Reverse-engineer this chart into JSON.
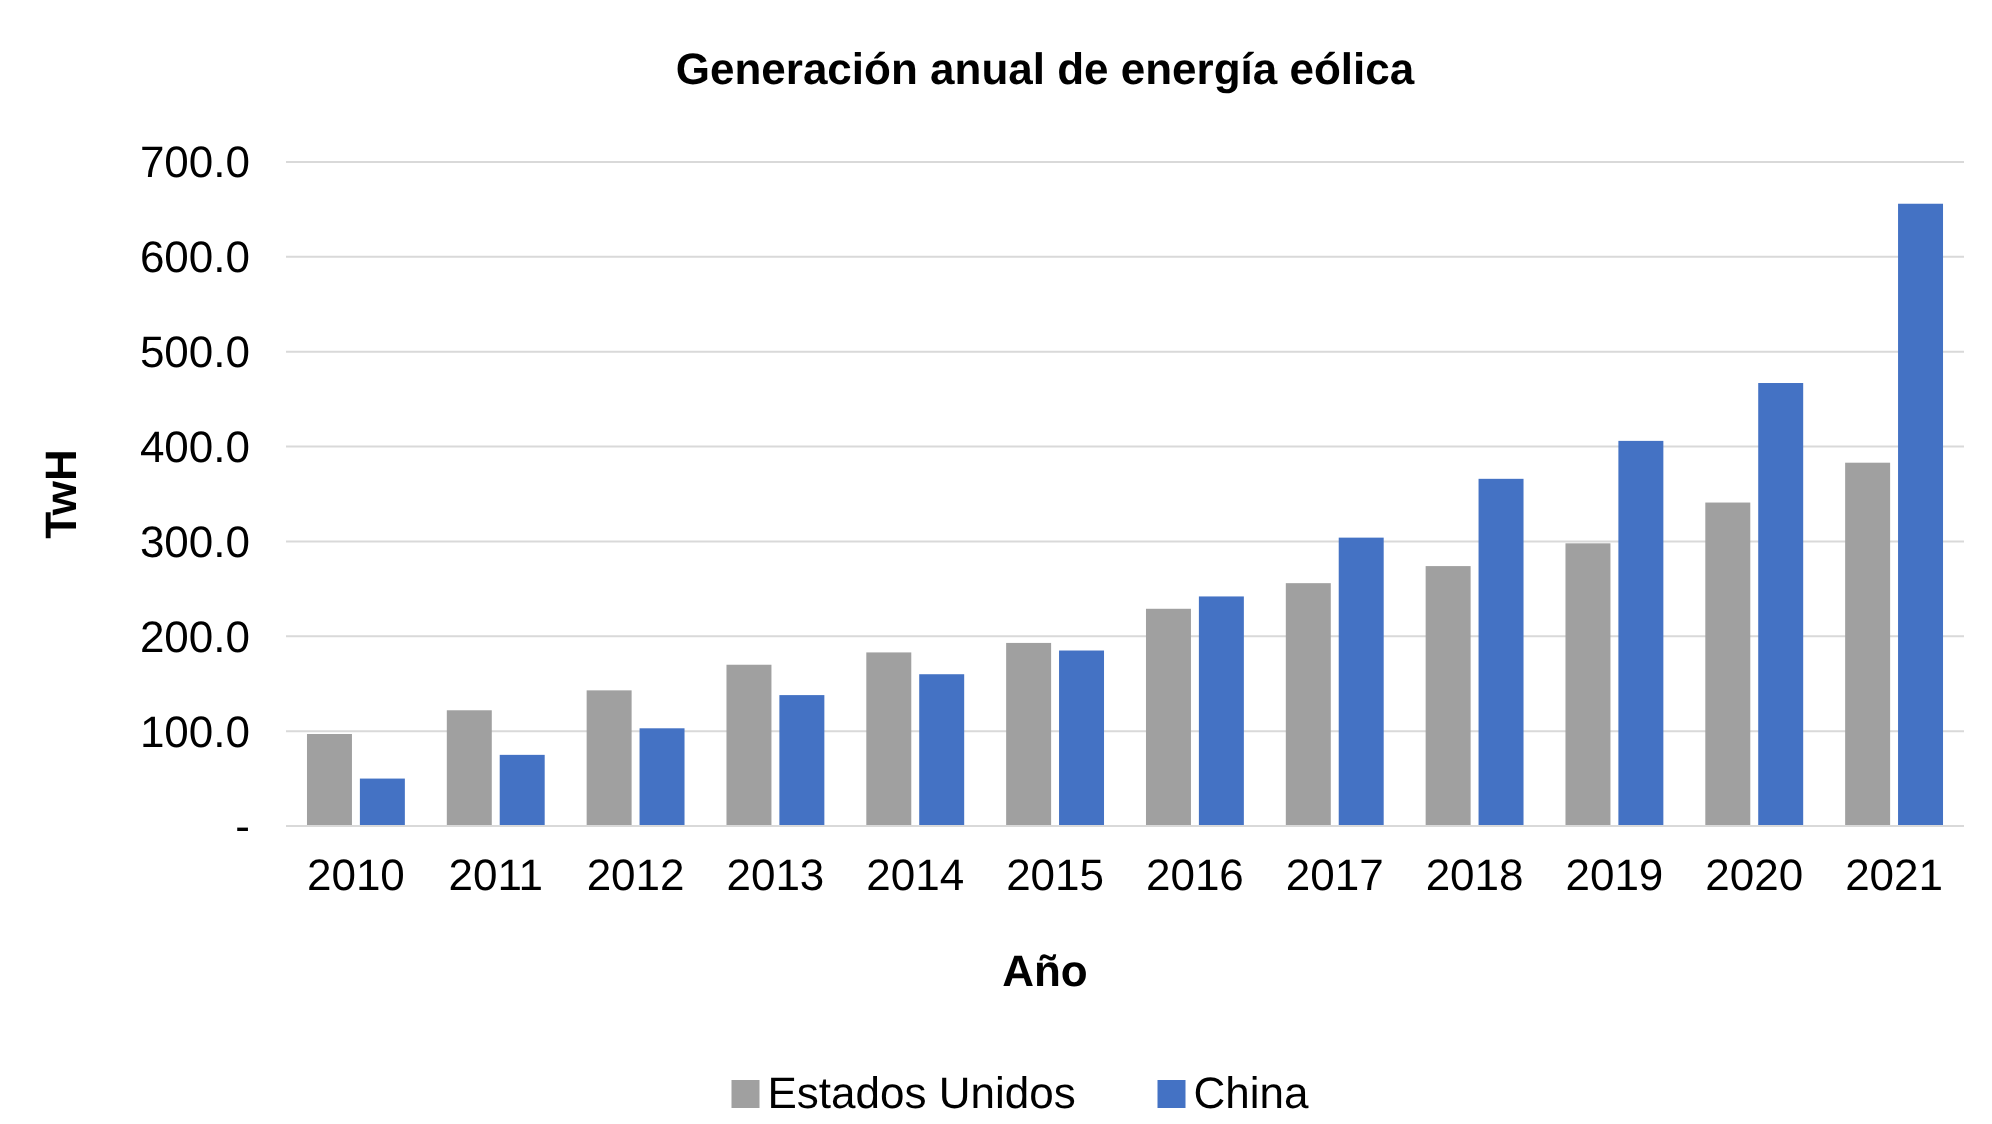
{
  "chart_data": {
    "type": "bar",
    "title": "Generación anual de energía eólica",
    "xlabel": "Año",
    "ylabel": "TwH",
    "categories": [
      "2010",
      "2011",
      "2012",
      "2013",
      "2014",
      "2015",
      "2016",
      "2017",
      "2018",
      "2019",
      "2020",
      "2021"
    ],
    "series": [
      {
        "name": "Estados Unidos",
        "color": "#a0a0a0",
        "values": [
          97,
          122,
          143,
          170,
          183,
          193,
          229,
          256,
          274,
          298,
          341,
          383
        ]
      },
      {
        "name": "China",
        "color": "#4472c4",
        "values": [
          50,
          75,
          103,
          138,
          160,
          185,
          242,
          304,
          366,
          406,
          467,
          656
        ]
      }
    ],
    "ylim": [
      0,
      700
    ],
    "yticks": [
      {
        "value": 0,
        "label": "-"
      },
      {
        "value": 100,
        "label": "100.0"
      },
      {
        "value": 200,
        "label": "200.0"
      },
      {
        "value": 300,
        "label": "300.0"
      },
      {
        "value": 400,
        "label": "400.0"
      },
      {
        "value": 500,
        "label": "500.0"
      },
      {
        "value": 600,
        "label": "600.0"
      },
      {
        "value": 700,
        "label": "700.0"
      }
    ],
    "grid": "y",
    "legend": "bottom"
  }
}
